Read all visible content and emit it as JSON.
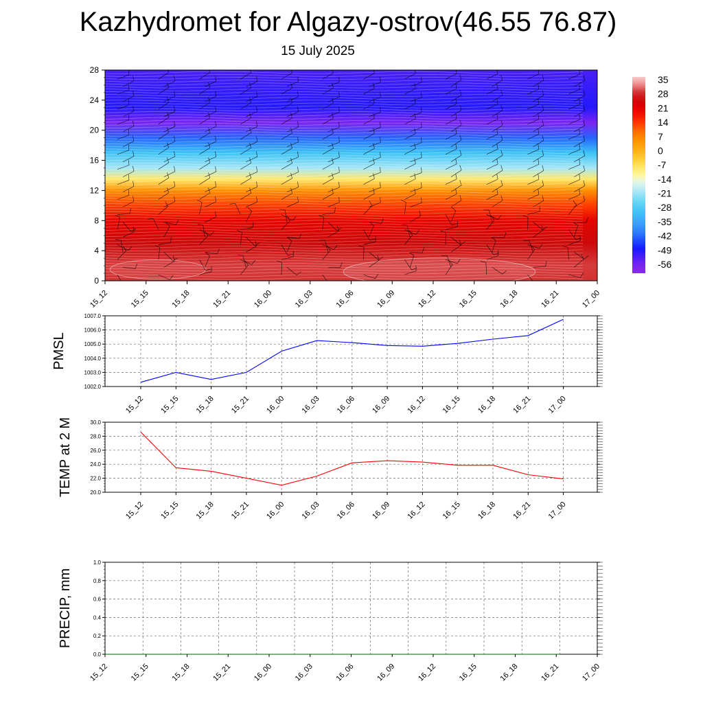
{
  "title": "Kazhydromet for Algazy-ostrov(46.55 76.87)",
  "subtitle": "15 July 2025",
  "chart_data": [
    {
      "type": "heatmap",
      "xlabel": "",
      "ylabel": "",
      "x": [
        "15_12",
        "15_15",
        "15_18",
        "15_21",
        "16_00",
        "16_03",
        "16_06",
        "16_09",
        "16_12",
        "16_15",
        "16_18",
        "16_21",
        "17_00"
      ],
      "yticks": [
        0,
        4,
        8,
        12,
        16,
        20,
        24,
        28
      ],
      "ylim": [
        0,
        28
      ],
      "colorbar": {
        "labels": [
          "35",
          "28",
          "21",
          "14",
          "7",
          "0",
          "-7",
          "-14",
          "-21",
          "-28",
          "-35",
          "-42",
          "-49",
          "-56"
        ],
        "range": [
          -60,
          37
        ]
      },
      "temperature_profile": [
        {
          "level": 0,
          "value": 29
        },
        {
          "level": 2,
          "value": 30
        },
        {
          "level": 5,
          "value": 26
        },
        {
          "level": 8,
          "value": 21
        },
        {
          "level": 10,
          "value": 14
        },
        {
          "level": 12,
          "value": 6
        },
        {
          "level": 13.5,
          "value": -8
        },
        {
          "level": 15,
          "value": -20
        },
        {
          "level": 17,
          "value": -30
        },
        {
          "level": 19,
          "value": -42
        },
        {
          "level": 21,
          "value": -56
        },
        {
          "level": 23,
          "value": -49
        },
        {
          "level": 25,
          "value": -50
        },
        {
          "level": 28,
          "value": -52
        }
      ],
      "wind_barbs": "present"
    },
    {
      "type": "line",
      "ylabel": "PMSL",
      "x": [
        "15_12",
        "15_15",
        "15_18",
        "15_21",
        "16_00",
        "16_03",
        "16_06",
        "16_09",
        "16_12",
        "16_15",
        "16_18",
        "16_21",
        "17_00"
      ],
      "series": [
        {
          "values": [
            1002.3,
            1003.0,
            1002.5,
            1003.0,
            1004.5,
            1005.25,
            1005.1,
            1004.9,
            1004.85,
            1005.05,
            1005.35,
            1005.6,
            1006.75
          ]
        }
      ],
      "ylim": [
        1002.0,
        1007.0
      ],
      "yticks": [
        "1002.0",
        "1003.0",
        "1004.0",
        "1005.0",
        "1006.0",
        "1007.0"
      ],
      "color": "#0000ff",
      "grid": true
    },
    {
      "type": "line",
      "ylabel": "TEMP at 2 M",
      "x": [
        "15_12",
        "15_15",
        "15_18",
        "15_21",
        "16_00",
        "16_03",
        "16_06",
        "16_09",
        "16_12",
        "16_15",
        "16_18",
        "16_21",
        "17_00"
      ],
      "series": [
        {
          "values": [
            28.6,
            23.5,
            23.0,
            22.0,
            21.0,
            22.3,
            24.2,
            24.5,
            24.3,
            23.85,
            23.85,
            22.5,
            21.9
          ]
        }
      ],
      "ylim": [
        20.0,
        30.0
      ],
      "yticks": [
        "20.0",
        "22.0",
        "24.0",
        "26.0",
        "28.0",
        "30.0"
      ],
      "color": "#ff0000",
      "grid": true
    },
    {
      "type": "line",
      "ylabel": "PRECIP, mm",
      "x": [
        "15_12",
        "15_15",
        "15_18",
        "15_21",
        "16_00",
        "16_03",
        "16_06",
        "16_09",
        "16_12",
        "16_15",
        "16_18",
        "16_21",
        "17_00"
      ],
      "series": [
        {
          "values": [
            0,
            0,
            0,
            0,
            0,
            0,
            0,
            0,
            0,
            0,
            0,
            0,
            0
          ]
        }
      ],
      "ylim": [
        0.0,
        1.0
      ],
      "yticks": [
        "0.0",
        "0.2",
        "0.4",
        "0.6",
        "0.8",
        "1.0"
      ],
      "color": "#006400",
      "grid": true
    }
  ]
}
